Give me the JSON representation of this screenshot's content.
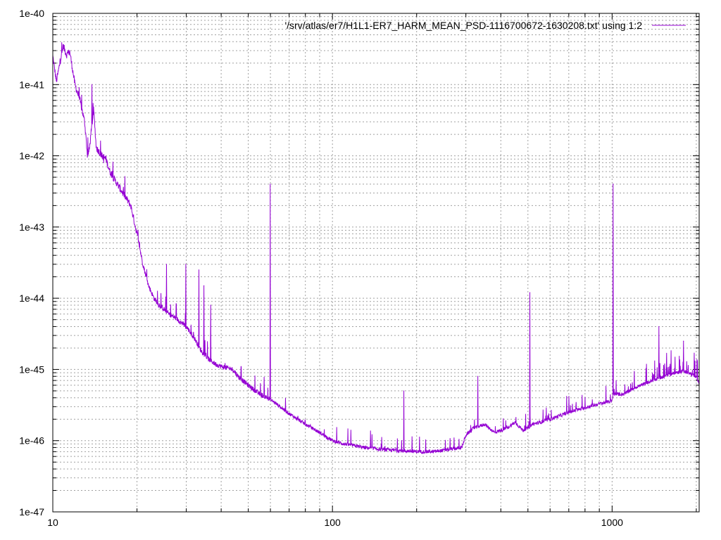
{
  "chart_data": {
    "type": "line",
    "title": "",
    "xlabel": "",
    "ylabel": "",
    "xscale": "log",
    "yscale": "log",
    "xlim": [
      10,
      2048
    ],
    "ylim": [
      1e-47,
      1e-40
    ],
    "grid": true,
    "legend_position": "top-right",
    "x_ticks": [
      {
        "value": 10,
        "label": "10"
      },
      {
        "value": 100,
        "label": "100"
      },
      {
        "value": 1000,
        "label": "1000"
      }
    ],
    "y_ticks": [
      {
        "value": 1e-40,
        "label": "1e-40"
      },
      {
        "value": 1e-41,
        "label": "1e-41"
      },
      {
        "value": 1e-42,
        "label": "1e-42"
      },
      {
        "value": 1e-43,
        "label": "1e-43"
      },
      {
        "value": 1e-44,
        "label": "1e-44"
      },
      {
        "value": 1e-45,
        "label": "1e-45"
      },
      {
        "value": 1e-46,
        "label": "1e-46"
      },
      {
        "value": 1e-47,
        "label": "1e-47"
      }
    ],
    "series": [
      {
        "name": "'/srv/atlas/er7/H1L1-ER7_HARM_MEAN_PSD-1116700672-1630208.txt' using 1:2",
        "color": "#9400d3",
        "x": [
          10,
          10.3,
          10.6,
          10.9,
          11.2,
          11.5,
          12,
          12.5,
          13,
          13.3,
          13.5,
          14,
          14.3,
          15,
          15.5,
          16,
          17,
          18,
          19,
          20,
          21,
          22,
          23,
          24,
          25,
          26,
          27,
          28,
          30,
          32,
          34,
          36,
          38,
          40,
          42,
          44,
          46,
          50,
          55,
          60,
          65,
          70,
          75,
          80,
          90,
          100,
          110,
          120,
          130,
          140,
          150,
          170,
          190,
          210,
          230,
          260,
          290,
          300,
          320,
          350,
          380,
          420,
          450,
          480,
          500,
          510,
          520,
          550,
          600,
          700,
          800,
          900,
          1000,
          1010,
          1100,
          1200,
          1400,
          1600,
          1800,
          2000,
          2048
        ],
        "y": [
          2.5e-41,
          1.1e-41,
          2e-41,
          3.5e-41,
          2.6e-41,
          2.9e-41,
          1e-41,
          6e-42,
          3e-42,
          1e-42,
          1.2e-42,
          4.5e-42,
          1.3e-42,
          1e-42,
          9e-43,
          6e-43,
          4e-43,
          2.8e-43,
          2e-43,
          8e-44,
          3e-44,
          1.5e-44,
          1e-44,
          8e-45,
          7e-45,
          6e-45,
          5.5e-45,
          5e-45,
          4e-45,
          2.8e-45,
          1.8e-45,
          1.4e-45,
          1.2e-45,
          1.1e-45,
          1.05e-45,
          1e-45,
          8e-46,
          6e-46,
          4.5e-46,
          3.8e-46,
          3e-46,
          2.4e-46,
          2e-46,
          1.7e-46,
          1.3e-46,
          1e-46,
          9e-47,
          8.5e-47,
          8e-47,
          7.8e-47,
          7.5e-47,
          7.3e-47,
          7.1e-47,
          7e-47,
          7e-47,
          7.5e-47,
          8e-47,
          1.2e-46,
          1.5e-46,
          1.7e-46,
          1.3e-46,
          1.5e-46,
          1.8e-46,
          1.4e-46,
          1.5e-46,
          1.6e-46,
          1.7e-46,
          1.8e-46,
          2e-46,
          2.5e-46,
          2.9e-46,
          3.3e-46,
          3.6e-46,
          4.5e-46,
          4.5e-46,
          5.5e-46,
          7e-46,
          8.5e-46,
          9.5e-46,
          8e-46,
          6.5e-46
        ],
        "peaks": [
          {
            "x": 13.8,
            "y": 1e-41
          },
          {
            "x": 15.2,
            "y": 8e-43
          },
          {
            "x": 25.5,
            "y": 3e-44
          },
          {
            "x": 29.9,
            "y": 3e-44
          },
          {
            "x": 33.3,
            "y": 2.5e-44
          },
          {
            "x": 34.7,
            "y": 1.5e-44
          },
          {
            "x": 36.7,
            "y": 8e-45
          },
          {
            "x": 59.9,
            "y": 4e-43
          },
          {
            "x": 180,
            "y": 5e-46
          },
          {
            "x": 331,
            "y": 8e-46
          },
          {
            "x": 508,
            "y": 1.2e-44
          },
          {
            "x": 1008,
            "y": 4e-43
          },
          {
            "x": 1470,
            "y": 4e-45
          },
          {
            "x": 1800,
            "y": 2.5e-45
          }
        ]
      }
    ]
  }
}
